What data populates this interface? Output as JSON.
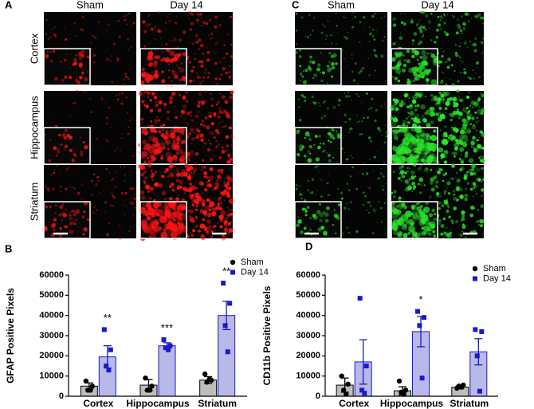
{
  "figure": {
    "panels": [
      {
        "label": "A",
        "stain": "GFAP",
        "columns": [
          "Sham",
          "Day 14"
        ],
        "rows": [
          "Cortex",
          "Hippocampus",
          "Striatum"
        ]
      },
      {
        "label": "C",
        "stain": "CD11b",
        "columns": [
          "Sham",
          "Day 14"
        ]
      }
    ]
  },
  "chart_data": [
    {
      "type": "bar",
      "panel_label": "B",
      "ylabel": "GFAP Positive Pixels",
      "categories": [
        "Cortex",
        "Hippocampus",
        "Striatum"
      ],
      "ylim": [
        0,
        60000
      ],
      "yticks": [
        0,
        10000,
        20000,
        30000,
        40000,
        50000,
        60000
      ],
      "series": [
        {
          "name": "Sham",
          "color": "#bdbdbd",
          "edge_color": "#000000",
          "marker": "circle",
          "marker_color": "#000000",
          "values": [
            5000,
            5500,
            8000
          ],
          "errors": [
            1600,
            2800,
            1700
          ],
          "points": [
            [
              7500,
              5000,
              3000,
              3000
            ],
            [
              9000,
              5000,
              3000,
              3000
            ],
            [
              11000,
              8000,
              7000,
              8500
            ]
          ]
        },
        {
          "name": "Day 14",
          "color": "#b8b9e8",
          "edge_color": "#1a1ac8",
          "marker": "square",
          "marker_color": "#1a1ac8",
          "values": [
            19500,
            25000,
            40000
          ],
          "errors": [
            5500,
            1500,
            7000
          ],
          "points": [
            [
              33000,
              23000,
              15000,
              13000
            ],
            [
              28000,
              25000,
              24000,
              23000
            ],
            [
              56000,
              46000,
              35000,
              22000
            ]
          ]
        }
      ],
      "annotations": [
        {
          "category": "Cortex",
          "text": "**"
        },
        {
          "category": "Hippocampus",
          "text": "***"
        },
        {
          "category": "Striatum",
          "text": "**"
        }
      ]
    },
    {
      "type": "bar",
      "panel_label": "D",
      "ylabel": "CD11b Positive Pixels",
      "categories": [
        "Cortex",
        "Hippocampus",
        "Striatum"
      ],
      "ylim": [
        0,
        60000
      ],
      "yticks": [
        0,
        10000,
        20000,
        30000,
        40000,
        50000,
        60000
      ],
      "series": [
        {
          "name": "Sham",
          "color": "#bdbdbd",
          "edge_color": "#000000",
          "marker": "circle",
          "marker_color": "#000000",
          "values": [
            5500,
            2700,
            4500
          ],
          "errors": [
            3500,
            2000,
            800
          ],
          "points": [
            [
              10000,
              6000,
              3000,
              1000
            ],
            [
              7500,
              3000,
              2000,
              1000
            ],
            [
              4000,
              5500,
              5000,
              4500
            ]
          ]
        },
        {
          "name": "Day 14",
          "color": "#b8b9e8",
          "edge_color": "#1a1ac8",
          "marker": "square",
          "marker_color": "#1a1ac8",
          "values": [
            17000,
            32000,
            22000
          ],
          "errors": [
            11000,
            7500,
            6500
          ],
          "points": [
            [
              48500,
              15000,
              3000,
              1500
            ],
            [
              42000,
              39000,
              35000,
              9000
            ],
            [
              33000,
              32000,
              20000,
              2500
            ]
          ]
        }
      ],
      "annotations": [
        {
          "category": "Hippocampus",
          "text": "*"
        }
      ]
    }
  ]
}
